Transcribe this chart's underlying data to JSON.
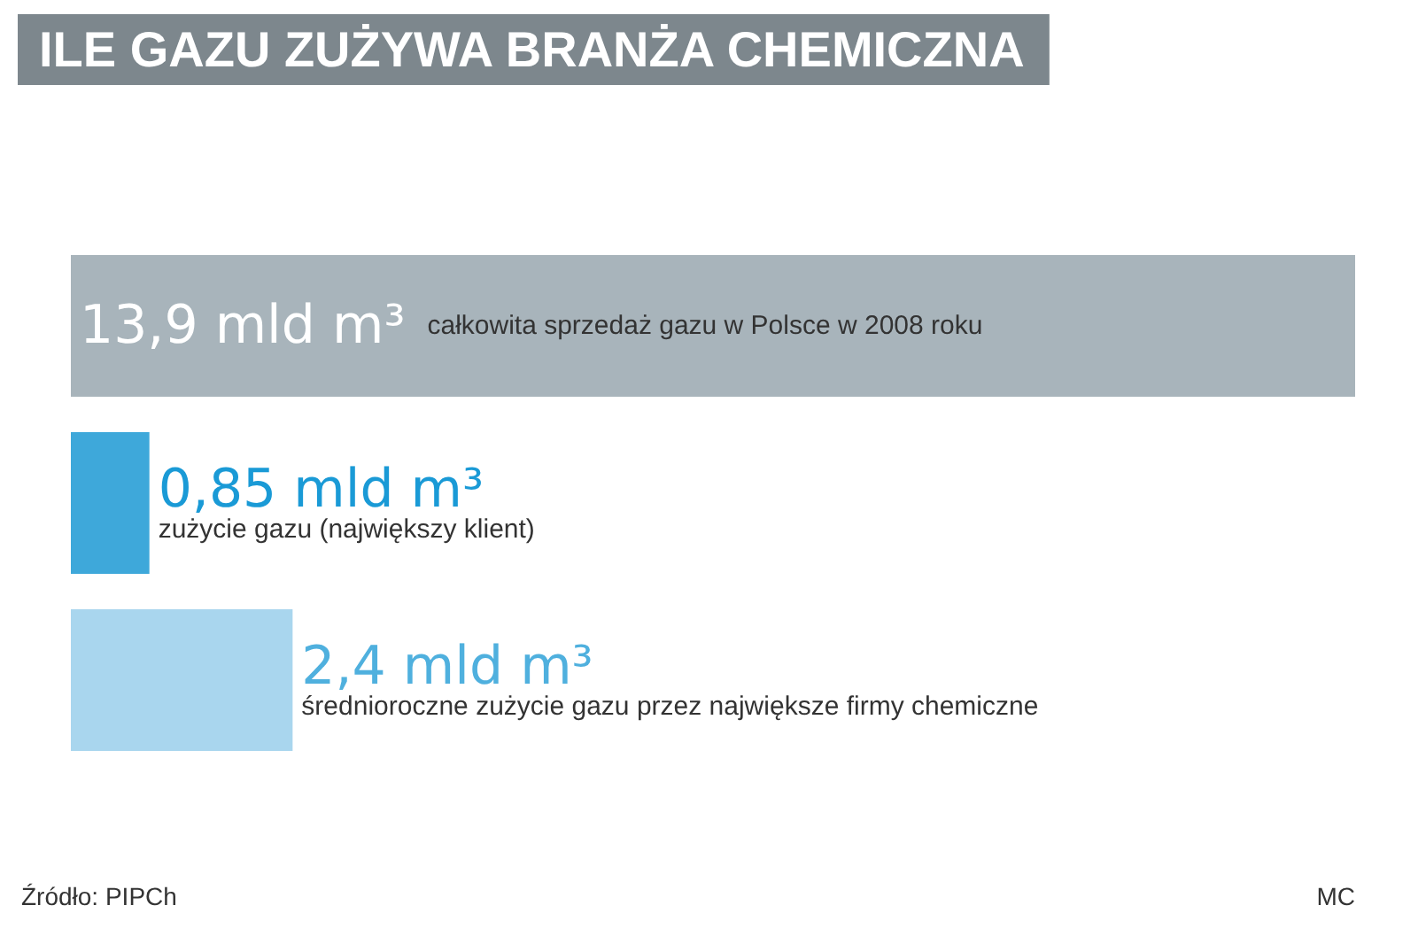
{
  "chart_data": {
    "type": "bar",
    "orientation": "horizontal",
    "title": "ILE GAZU ZUŻYWA BRANŻA CHEMICZNA",
    "categories": [
      null
    ],
    "series": [
      {
        "name": "całkowita sprzedaż gazu w Polsce w 2008 roku",
        "color": "#a8b4bb",
        "values": [
          13.9
        ],
        "value_labels": [
          "13,9 mld m³"
        ]
      },
      {
        "name": "zużycie gazu (największy klient)",
        "color": "#3ea8da",
        "values": [
          0.85
        ],
        "value_labels": [
          "0,85 mld m³"
        ]
      },
      {
        "name": "średnioroczne zużycie gazu przez największe firmy chemiczne",
        "color": "#a9d6ee",
        "values": [
          2.4
        ],
        "value_labels": [
          "2,4 mld m³"
        ]
      }
    ],
    "annotations": [
      "Źródło: PIPCh",
      "MC"
    ],
    "legend": false
  }
}
